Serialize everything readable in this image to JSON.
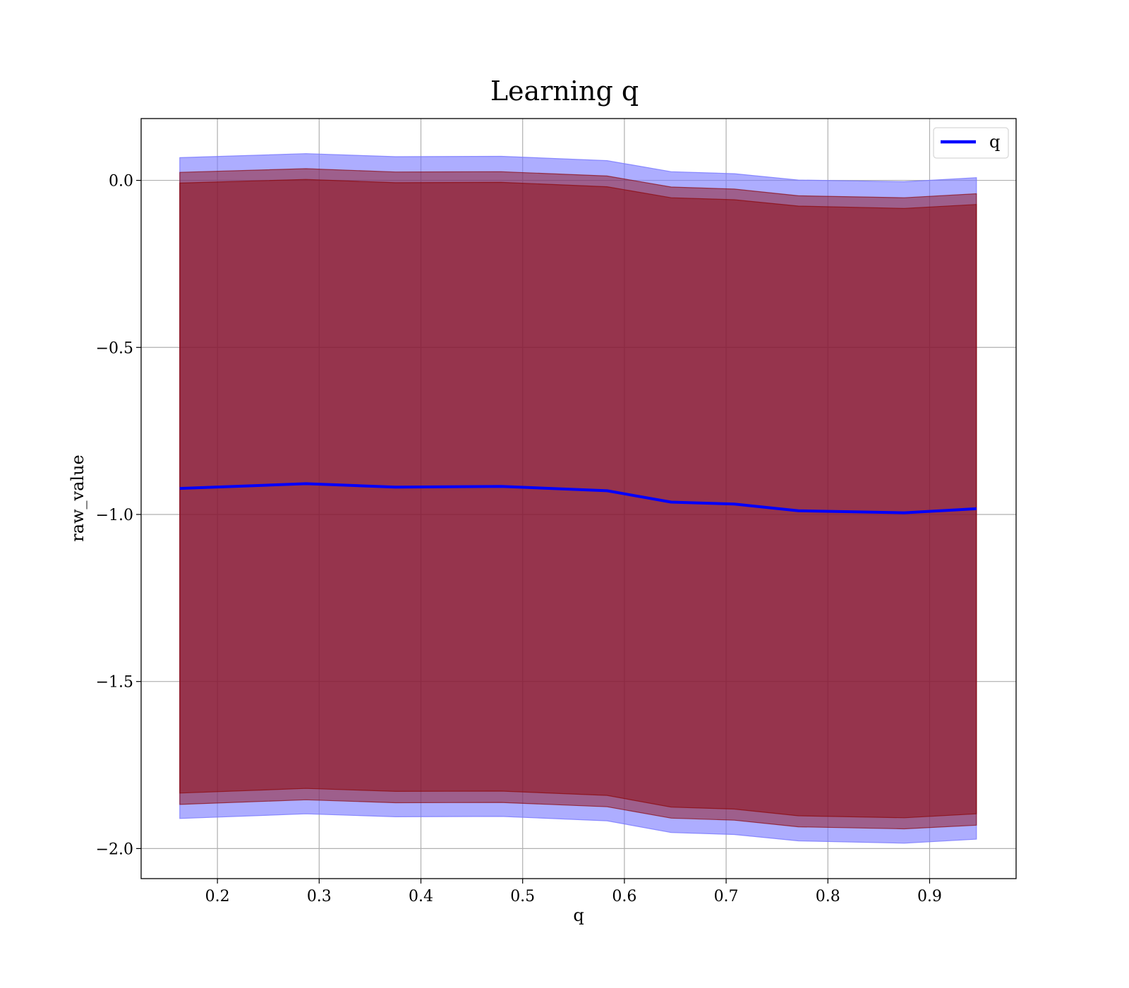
{
  "chart_data": {
    "type": "area",
    "title": "Learning q",
    "xlabel": "q",
    "ylabel": "raw_value",
    "xlim": [
      0.125,
      0.985
    ],
    "ylim": [
      -2.09,
      0.185
    ],
    "xticks": [
      0.2,
      0.3,
      0.4,
      0.5,
      0.6,
      0.7,
      0.8,
      0.9
    ],
    "xtick_labels": [
      "0.2",
      "0.3",
      "0.4",
      "0.5",
      "0.6",
      "0.7",
      "0.8",
      "0.9"
    ],
    "yticks": [
      0.0,
      -0.5,
      -1.0,
      -1.5,
      -2.0
    ],
    "ytick_labels": [
      "0.0",
      "−0.5",
      "−1.0",
      "−1.5",
      "−2.0"
    ],
    "grid": true,
    "legend_position": "top-right",
    "x": [
      0.163,
      0.287,
      0.375,
      0.479,
      0.583,
      0.646,
      0.708,
      0.771,
      0.875,
      0.946
    ],
    "series": [
      {
        "name": "q",
        "color": "#0000ff",
        "values": [
          -0.922,
          -0.908,
          -0.918,
          -0.916,
          -0.929,
          -0.963,
          -0.969,
          -0.989,
          -0.995,
          -0.983
        ]
      }
    ],
    "bands": [
      {
        "fill": "#7777ff",
        "opacity": 0.6,
        "upper": [
          0.068,
          0.08,
          0.071,
          0.072,
          0.059,
          0.026,
          0.02,
          0.001,
          -0.004,
          0.008
        ],
        "lower": [
          -1.91,
          -1.896,
          -1.905,
          -1.904,
          -1.917,
          -1.952,
          -1.958,
          -1.977,
          -1.984,
          -1.972
        ]
      },
      {
        "fill": "#8b0000",
        "opacity": 0.45,
        "upper": [
          -0.008,
          0.003,
          -0.007,
          -0.006,
          -0.019,
          -0.052,
          -0.058,
          -0.077,
          -0.084,
          -0.072
        ],
        "lower": [
          -1.834,
          -1.82,
          -1.829,
          -1.828,
          -1.841,
          -1.876,
          -1.882,
          -1.902,
          -1.908,
          -1.896
        ]
      },
      {
        "fill": "#8b0000",
        "opacity": 0.45,
        "upper": [
          0.024,
          0.035,
          0.025,
          0.026,
          0.013,
          -0.02,
          -0.026,
          -0.046,
          -0.052,
          -0.04
        ],
        "lower": [
          -1.868,
          -1.854,
          -1.863,
          -1.862,
          -1.875,
          -1.909,
          -1.915,
          -1.935,
          -1.941,
          -1.93
        ]
      }
    ]
  }
}
